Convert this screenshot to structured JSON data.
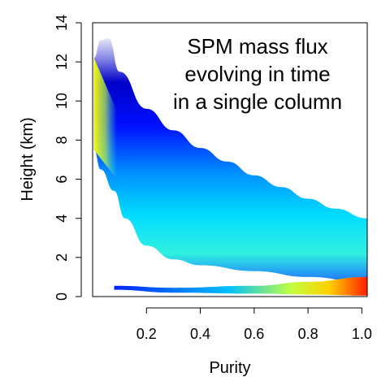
{
  "chart_data": {
    "type": "heatmap",
    "title": "",
    "annotation": [
      "SPM mass flux",
      "evolving in time",
      "in a single column"
    ],
    "xlabel": "Purity",
    "ylabel": "Height (km)",
    "xlim": [
      0.0,
      1.02
    ],
    "ylim": [
      0,
      14
    ],
    "x_ticks": [
      "0.2",
      "0.4",
      "0.6",
      "0.8",
      "1.0"
    ],
    "x_tick_values": [
      0.2,
      0.4,
      0.6,
      0.8,
      1.0
    ],
    "y_ticks": [
      "0",
      "2",
      "4",
      "6",
      "8",
      "10",
      "12",
      "14"
    ],
    "y_tick_values": [
      0,
      2,
      4,
      6,
      8,
      10,
      12,
      14
    ],
    "color_scale": [
      "#e8e8f8",
      "#8080e0",
      "#0000cc",
      "#0000ff",
      "#0080ff",
      "#00e0ff",
      "#40ffd0",
      "#c0ff40",
      "#ffff00",
      "#ffa000",
      "#ff0000"
    ],
    "plume_upper_edge_km": [
      {
        "purity": 0.005,
        "height": 12.2
      },
      {
        "purity": 0.03,
        "height": 13.1
      },
      {
        "purity": 0.06,
        "height": 13.2
      },
      {
        "purity": 0.1,
        "height": 11.5
      },
      {
        "purity": 0.2,
        "height": 9.6
      },
      {
        "purity": 0.3,
        "height": 8.5
      },
      {
        "purity": 0.4,
        "height": 7.6
      },
      {
        "purity": 0.5,
        "height": 6.9
      },
      {
        "purity": 0.6,
        "height": 6.2
      },
      {
        "purity": 0.7,
        "height": 5.6
      },
      {
        "purity": 0.8,
        "height": 5.0
      },
      {
        "purity": 0.9,
        "height": 4.5
      },
      {
        "purity": 1.02,
        "height": 4.0
      }
    ],
    "plume_lower_edge_km": [
      {
        "purity": 0.005,
        "height": 7.5
      },
      {
        "purity": 0.03,
        "height": 6.5
      },
      {
        "purity": 0.08,
        "height": 5.4
      },
      {
        "purity": 0.12,
        "height": 4.0
      },
      {
        "purity": 0.2,
        "height": 2.6
      },
      {
        "purity": 0.3,
        "height": 1.9
      },
      {
        "purity": 0.4,
        "height": 1.6
      },
      {
        "purity": 0.6,
        "height": 1.3
      },
      {
        "purity": 0.8,
        "height": 1.0
      },
      {
        "purity": 1.02,
        "height": 0.7
      }
    ],
    "plume_ridge_km": [
      {
        "purity": 0.005,
        "height": 9.8
      },
      {
        "purity": 0.05,
        "height": 8.8
      },
      {
        "purity": 0.1,
        "height": 7.5
      },
      {
        "purity": 0.2,
        "height": 5.4
      },
      {
        "purity": 0.4,
        "height": 4.0
      },
      {
        "purity": 0.6,
        "height": 3.3
      },
      {
        "purity": 0.8,
        "height": 2.6
      },
      {
        "purity": 1.02,
        "height": 2.0
      }
    ],
    "surface_layer_km": [
      {
        "purity": 0.08,
        "bottom": 0.35,
        "top": 0.55
      },
      {
        "purity": 0.3,
        "bottom": 0.2,
        "top": 0.45
      },
      {
        "purity": 0.6,
        "bottom": 0.15,
        "top": 0.55
      },
      {
        "purity": 0.8,
        "bottom": 0.1,
        "top": 0.75
      },
      {
        "purity": 1.02,
        "bottom": 0.05,
        "top": 1.0
      }
    ]
  }
}
